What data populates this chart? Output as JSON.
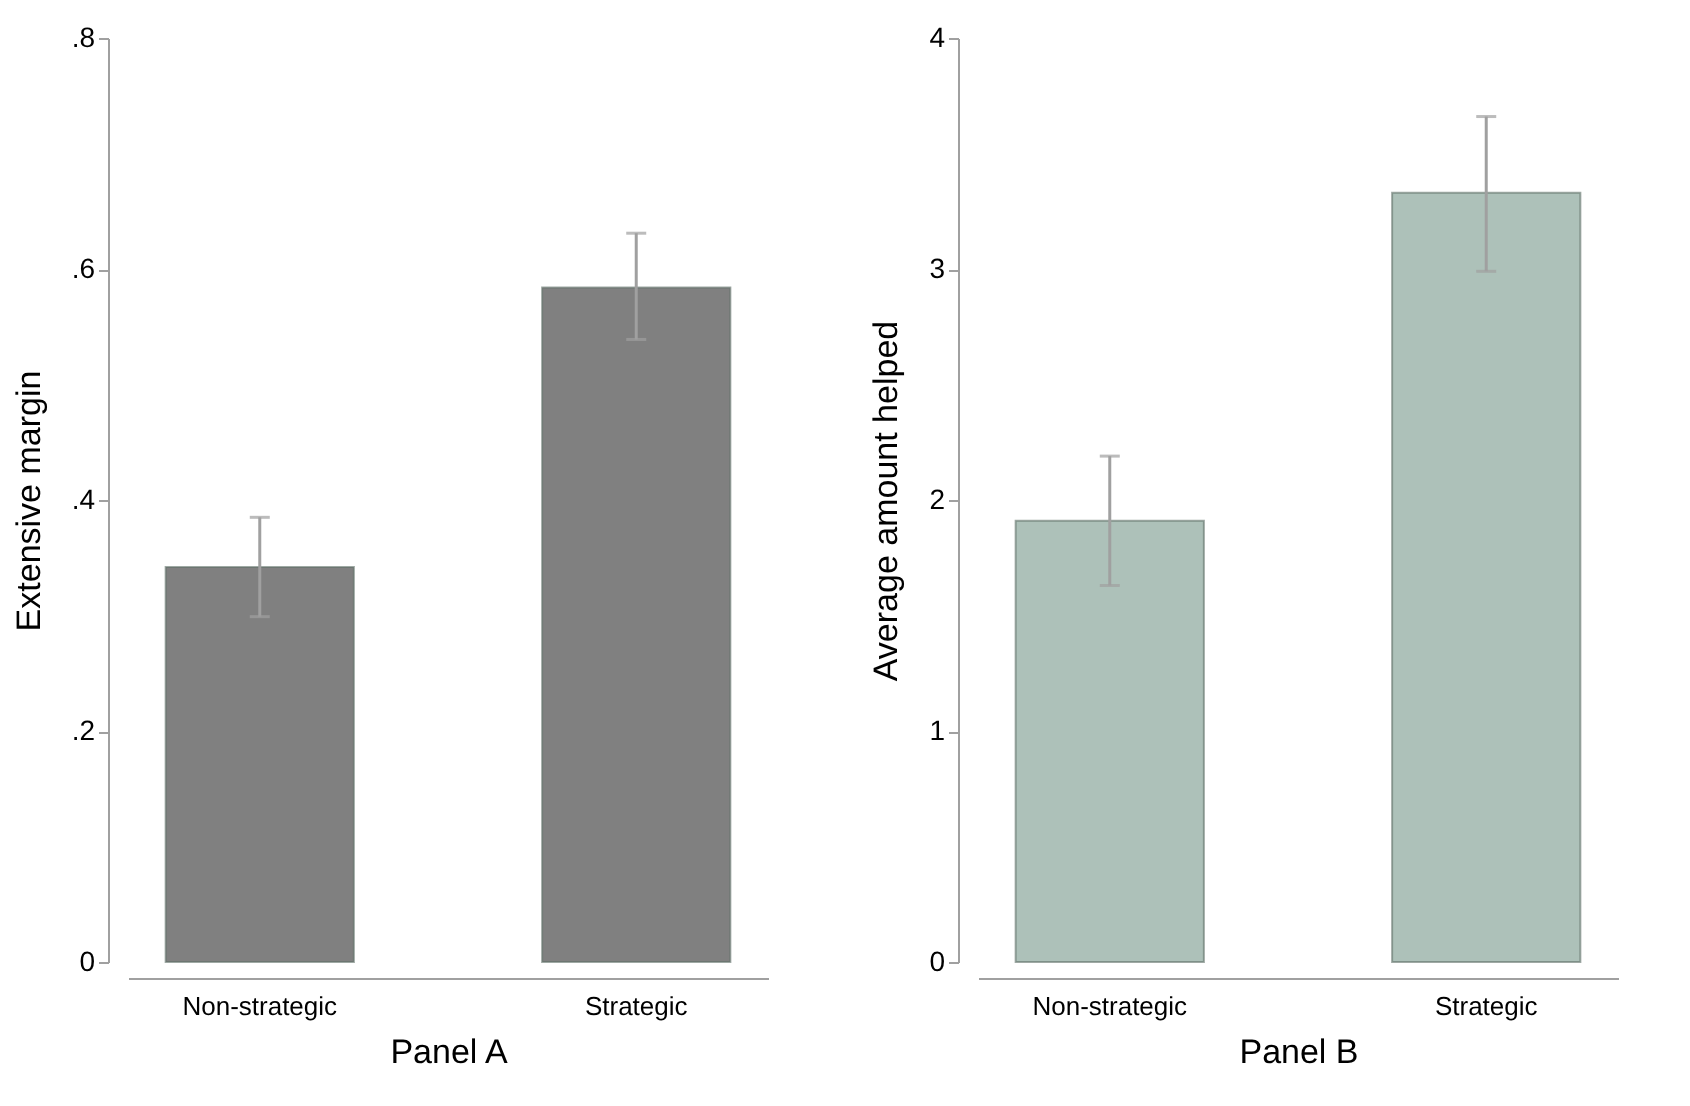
{
  "chart_data": [
    {
      "type": "bar",
      "xlabel": "Panel A",
      "ylabel": "Extensive margin",
      "categories": [
        "Non-strategic",
        "Strategic"
      ],
      "series": [
        {
          "color": "#808080",
          "values": [
            0.342,
            0.584
          ],
          "errors": [
            [
              0.299,
              0.385
            ],
            [
              0.539,
              0.631
            ]
          ]
        }
      ],
      "ylim": [
        0,
        0.8
      ],
      "yticks": [
        0,
        {
          "value": 0.2,
          "label": ".2"
        },
        {
          "value": 0.4,
          "label": ".4"
        },
        {
          "value": 0.6,
          "label": ".6"
        },
        {
          "value": 0.8,
          "label": ".8"
        }
      ],
      "grid": false
    },
    {
      "type": "bar",
      "xlabel": "Panel B",
      "ylabel": "Average amount helped",
      "categories": [
        "Non-strategic",
        "Strategic"
      ],
      "series": [
        {
          "color": "#adc1b9",
          "values": [
            1.91,
            3.33
          ],
          "errors": [
            [
              1.63,
              2.19
            ],
            [
              2.99,
              3.66
            ]
          ]
        }
      ],
      "ylim": [
        0,
        4
      ],
      "yticks": [
        0,
        1,
        2,
        3,
        4
      ],
      "grid": false
    }
  ]
}
